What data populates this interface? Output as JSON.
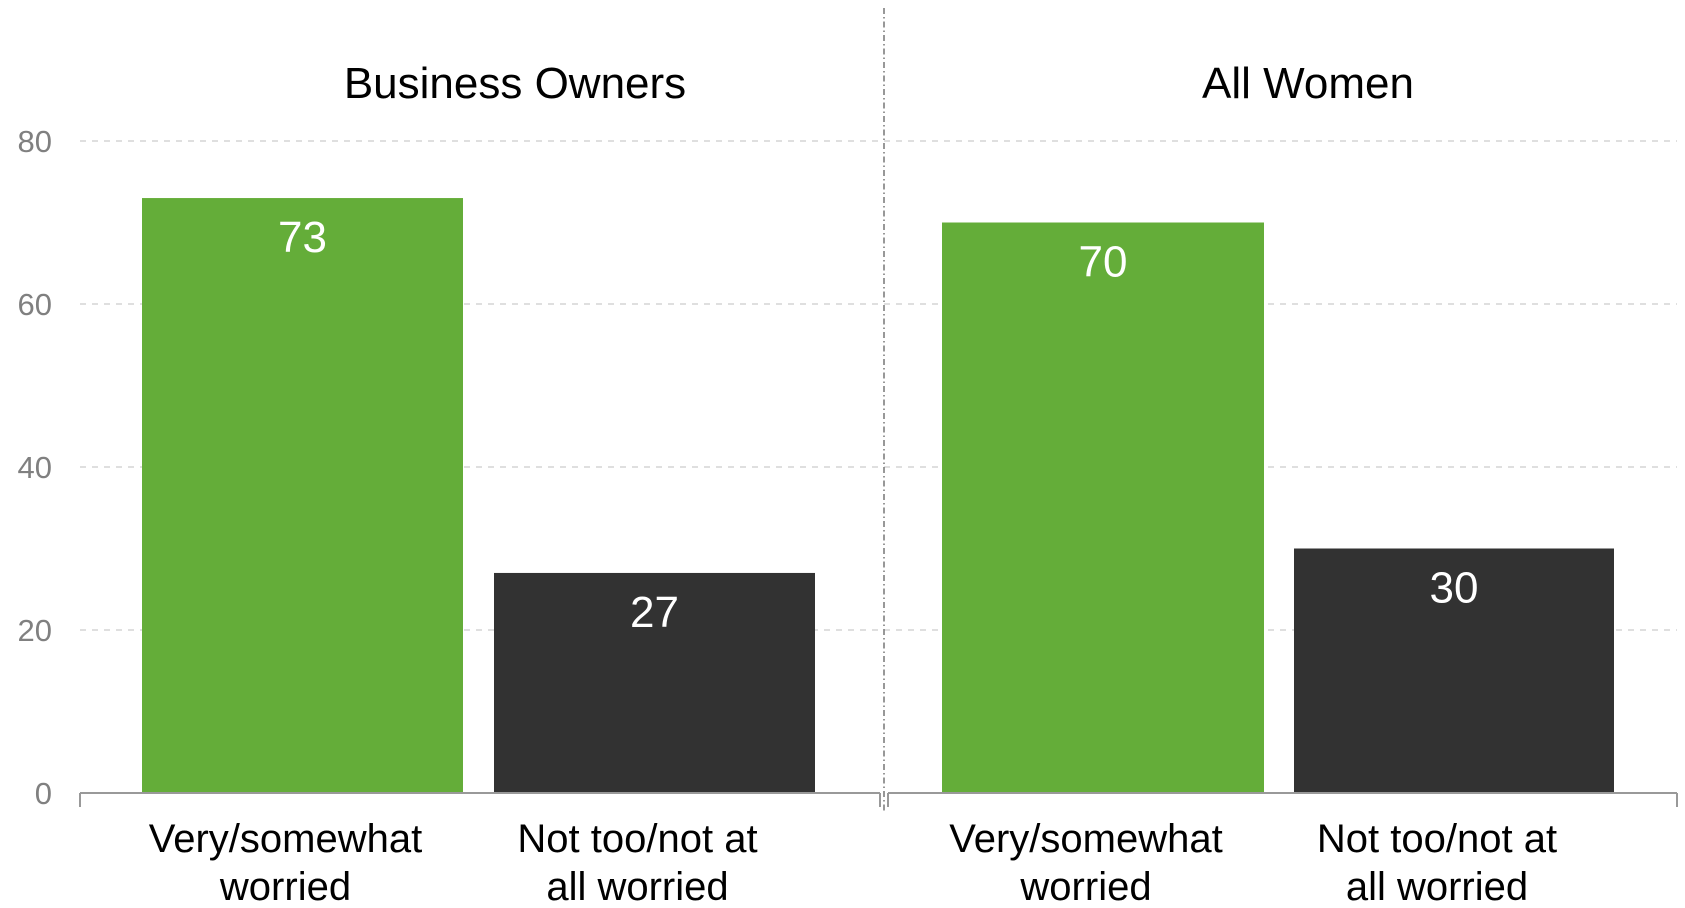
{
  "chart_data": [
    {
      "type": "bar",
      "title": "Business Owners",
      "categories": [
        "Very/somewhat worried",
        "Not too/not at all worried"
      ],
      "category_lines": [
        [
          "Very/somewhat",
          "worried"
        ],
        [
          "Not too/not at",
          "all worried"
        ]
      ],
      "values": [
        73,
        27
      ],
      "bar_colors": [
        "#64ad39",
        "#323232"
      ],
      "ylim": [
        0,
        80
      ],
      "yticks": [
        0,
        20,
        40,
        60,
        80
      ],
      "grid": true
    },
    {
      "type": "bar",
      "title": "All Women",
      "categories": [
        "Very/somewhat worried",
        "Not too/not at all worried"
      ],
      "category_lines": [
        [
          "Very/somewhat",
          "worried"
        ],
        [
          "Not too/not at",
          "all worried"
        ]
      ],
      "values": [
        70,
        30
      ],
      "bar_colors": [
        "#64ad39",
        "#323232"
      ],
      "ylim": [
        0,
        80
      ],
      "yticks": [
        0,
        20,
        40,
        60,
        80
      ],
      "grid": true
    }
  ],
  "colors": {
    "worried": "#64ad39",
    "not_worried": "#323232",
    "grid": "#cccccc",
    "axis": "#999999",
    "tick_label": "#808080"
  }
}
